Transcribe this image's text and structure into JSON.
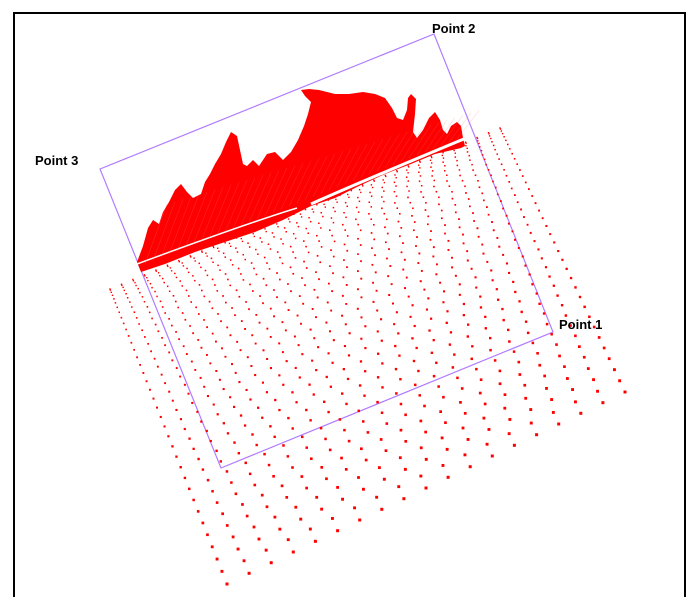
{
  "viewport": {
    "border_color": "#000000",
    "background": "#ffffff"
  },
  "selection_box": {
    "color": "#b07cff",
    "labels": {
      "point1": "Point 1",
      "point2": "Point 2",
      "point3": "Point 3"
    }
  },
  "point_cloud": {
    "color": "#ff0000",
    "object_description": "red meshed surface above a sloped ground plane of scattered dots"
  }
}
